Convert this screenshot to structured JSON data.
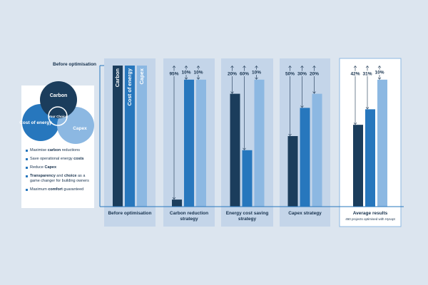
{
  "reference_label": "Before optimisation",
  "sidebar": {
    "venn": {
      "top": "Carbon",
      "left": "Cost of energy",
      "right": "Capex",
      "center": "Your Choice"
    },
    "bullets": [
      [
        {
          "text": "Maximise "
        },
        {
          "text": "carbon",
          "bold": true
        },
        {
          "text": " reductions"
        }
      ],
      [
        {
          "text": "Save operational energy "
        },
        {
          "text": "costs",
          "bold": true
        }
      ],
      [
        {
          "text": "Reduce "
        },
        {
          "text": "Capex",
          "bold": true
        }
      ],
      [
        {
          "text": "Transparency",
          "bold": true
        },
        {
          "text": " and "
        },
        {
          "text": "choice",
          "bold": true
        },
        {
          "text": " as a game changer for building owners"
        }
      ],
      [
        {
          "text": "Maximum "
        },
        {
          "text": "comfort",
          "bold": true
        },
        {
          "text": " guaranteed"
        }
      ]
    ]
  },
  "chart_data": [
    {
      "type": "bar",
      "title": "Before optimisation",
      "categories": [
        "Carbon",
        "Cost of energy",
        "Capex"
      ],
      "values": [
        0,
        0,
        0
      ],
      "colors": [
        "#1b3d5c",
        "#2777bd",
        "#8cb8e2"
      ],
      "ylim": [
        0,
        100
      ]
    },
    {
      "type": "bar",
      "title": "Carbon reduction strategy",
      "values": [
        95,
        10,
        10
      ],
      "value_labels": [
        "95%",
        "10%",
        "10%"
      ],
      "colors": [
        "#1b3d5c",
        "#2777bd",
        "#8cb8e2"
      ],
      "ylim": [
        0,
        100
      ]
    },
    {
      "type": "bar",
      "title": "Energy cost saving strategy",
      "values": [
        20,
        60,
        10
      ],
      "value_labels": [
        "20%",
        "60%",
        "10%"
      ],
      "colors": [
        "#1b3d5c",
        "#2777bd",
        "#8cb8e2"
      ],
      "ylim": [
        0,
        100
      ]
    },
    {
      "type": "bar",
      "title": "Capex strategy",
      "values": [
        50,
        30,
        20
      ],
      "value_labels": [
        "50%",
        "30%",
        "20%"
      ],
      "colors": [
        "#1b3d5c",
        "#2777bd",
        "#8cb8e2"
      ],
      "ylim": [
        0,
        100
      ]
    },
    {
      "type": "bar",
      "title": "Average results",
      "subtitle": "450 projects optimised with Hysopt",
      "values": [
        42,
        31,
        10
      ],
      "value_labels": [
        "42%",
        "31%",
        "10%"
      ],
      "colors": [
        "#1b3d5c",
        "#2777bd",
        "#8cb8e2"
      ],
      "ylim": [
        0,
        100
      ]
    }
  ]
}
